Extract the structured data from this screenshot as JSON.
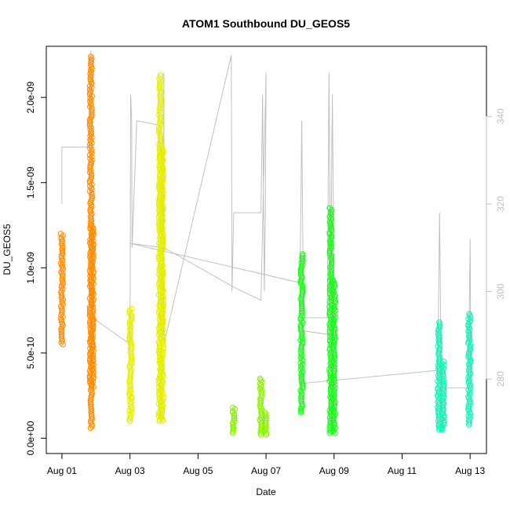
{
  "chart_data": {
    "type": "scatter",
    "title": "ATOM1 Southbound DU_GEOS5",
    "xlabel": "Date",
    "ylabel": "DU_GEOS5",
    "x_ticks": [
      "Aug 01",
      "Aug 03",
      "Aug 05",
      "Aug 07",
      "Aug 09",
      "Aug 11",
      "Aug 13"
    ],
    "x_tick_days": [
      1,
      3,
      5,
      7,
      9,
      11,
      13
    ],
    "xlim_days": [
      0.54,
      13.48
    ],
    "ylim": [
      -9e-11,
      2.3e-09
    ],
    "y_ticks": [
      0,
      5e-10,
      1e-09,
      1.5e-09,
      2e-09
    ],
    "y_tick_labels": [
      "0.0e+00",
      "5.0e-10",
      "1.0e-09",
      "1.5e-09",
      "2.0e-09"
    ],
    "y2_ticks": [
      280,
      300,
      320,
      340
    ],
    "y2_tick_labels": [
      "280",
      "300",
      "320",
      "340"
    ],
    "y2lim": [
      263,
      356
    ],
    "y2_color": "#c0c0c0",
    "series": [
      {
        "color": "#ff8c00",
        "segments": [
          {
            "x": 1.0,
            "ymin": 5.5e-10,
            "ymax": 1.2e-09
          },
          {
            "x": 1.85,
            "ymin": 6e-11,
            "ymax": 2.24e-09
          },
          {
            "x": 1.9,
            "ymin": 3e-10,
            "ymax": 1.25e-09
          }
        ]
      },
      {
        "color": "#e6ee00",
        "segments": [
          {
            "x": 3.02,
            "ymin": 1e-10,
            "ymax": 7.6e-10
          },
          {
            "x": 3.88,
            "ymin": 1e-10,
            "ymax": 2.13e-09
          },
          {
            "x": 3.95,
            "ymin": 1e-10,
            "ymax": 1.7e-09
          }
        ]
      },
      {
        "color": "#8bf000",
        "segments": [
          {
            "x": 6.05,
            "ymin": 3e-11,
            "ymax": 1.8e-10
          },
          {
            "x": 6.85,
            "ymin": 2e-11,
            "ymax": 3.5e-10
          },
          {
            "x": 7.0,
            "ymin": 2e-11,
            "ymax": 1.5e-10
          }
        ]
      },
      {
        "color": "#1ef51e",
        "segments": [
          {
            "x": 8.05,
            "ymin": 1.5e-10,
            "ymax": 1.08e-09
          },
          {
            "x": 8.9,
            "ymin": 3e-11,
            "ymax": 1.35e-09
          },
          {
            "x": 9.0,
            "ymin": 3e-11,
            "ymax": 9.3e-10
          }
        ]
      },
      {
        "color": "#14f0b4",
        "segments": [
          {
            "x": 12.08,
            "ymin": 5e-11,
            "ymax": 6.8e-10
          },
          {
            "x": 12.2,
            "ymin": 5e-11,
            "ymax": 4.5e-10
          },
          {
            "x": 12.98,
            "ymin": 8e-11,
            "ymax": 7.3e-10
          }
        ]
      }
    ],
    "altitude_line": {
      "color": "#c0c0c0",
      "points": [
        [
          1.0,
          320
        ],
        [
          1.0,
          333
        ],
        [
          1.02,
          333
        ],
        [
          1.8,
          333
        ],
        [
          1.85,
          355
        ],
        [
          1.9,
          294
        ],
        [
          3.0,
          288
        ],
        [
          3.02,
          345
        ],
        [
          3.05,
          339
        ],
        [
          3.06,
          310
        ],
        [
          3.2,
          339
        ],
        [
          3.85,
          338
        ],
        [
          3.9,
          330
        ],
        [
          3.95,
          335
        ],
        [
          3.98,
          290
        ],
        [
          4.0,
          350
        ],
        [
          4.0,
          288
        ],
        [
          5.98,
          354
        ],
        [
          6.0,
          300
        ],
        [
          6.05,
          318
        ],
        [
          6.1,
          318
        ],
        [
          6.85,
          318
        ],
        [
          6.9,
          345
        ],
        [
          6.95,
          300
        ],
        [
          6.98,
          318
        ],
        [
          7.0,
          350
        ],
        [
          6.85,
          298
        ],
        [
          6.05,
          301
        ],
        [
          4.0,
          310
        ],
        [
          3.0,
          311
        ],
        [
          8.0,
          302
        ],
        [
          8.05,
          339
        ],
        [
          8.1,
          294
        ],
        [
          8.8,
          294
        ],
        [
          8.85,
          350
        ],
        [
          8.9,
          300
        ],
        [
          8.95,
          345
        ],
        [
          9.0,
          300
        ],
        [
          9.0,
          290
        ],
        [
          8.1,
          291
        ],
        [
          8.05,
          279
        ],
        [
          12.05,
          282
        ],
        [
          12.1,
          318
        ],
        [
          12.15,
          283
        ],
        [
          12.2,
          268
        ],
        [
          12.3,
          278
        ],
        [
          12.95,
          278
        ],
        [
          13.0,
          312
        ],
        [
          13.02,
          280
        ]
      ]
    }
  }
}
